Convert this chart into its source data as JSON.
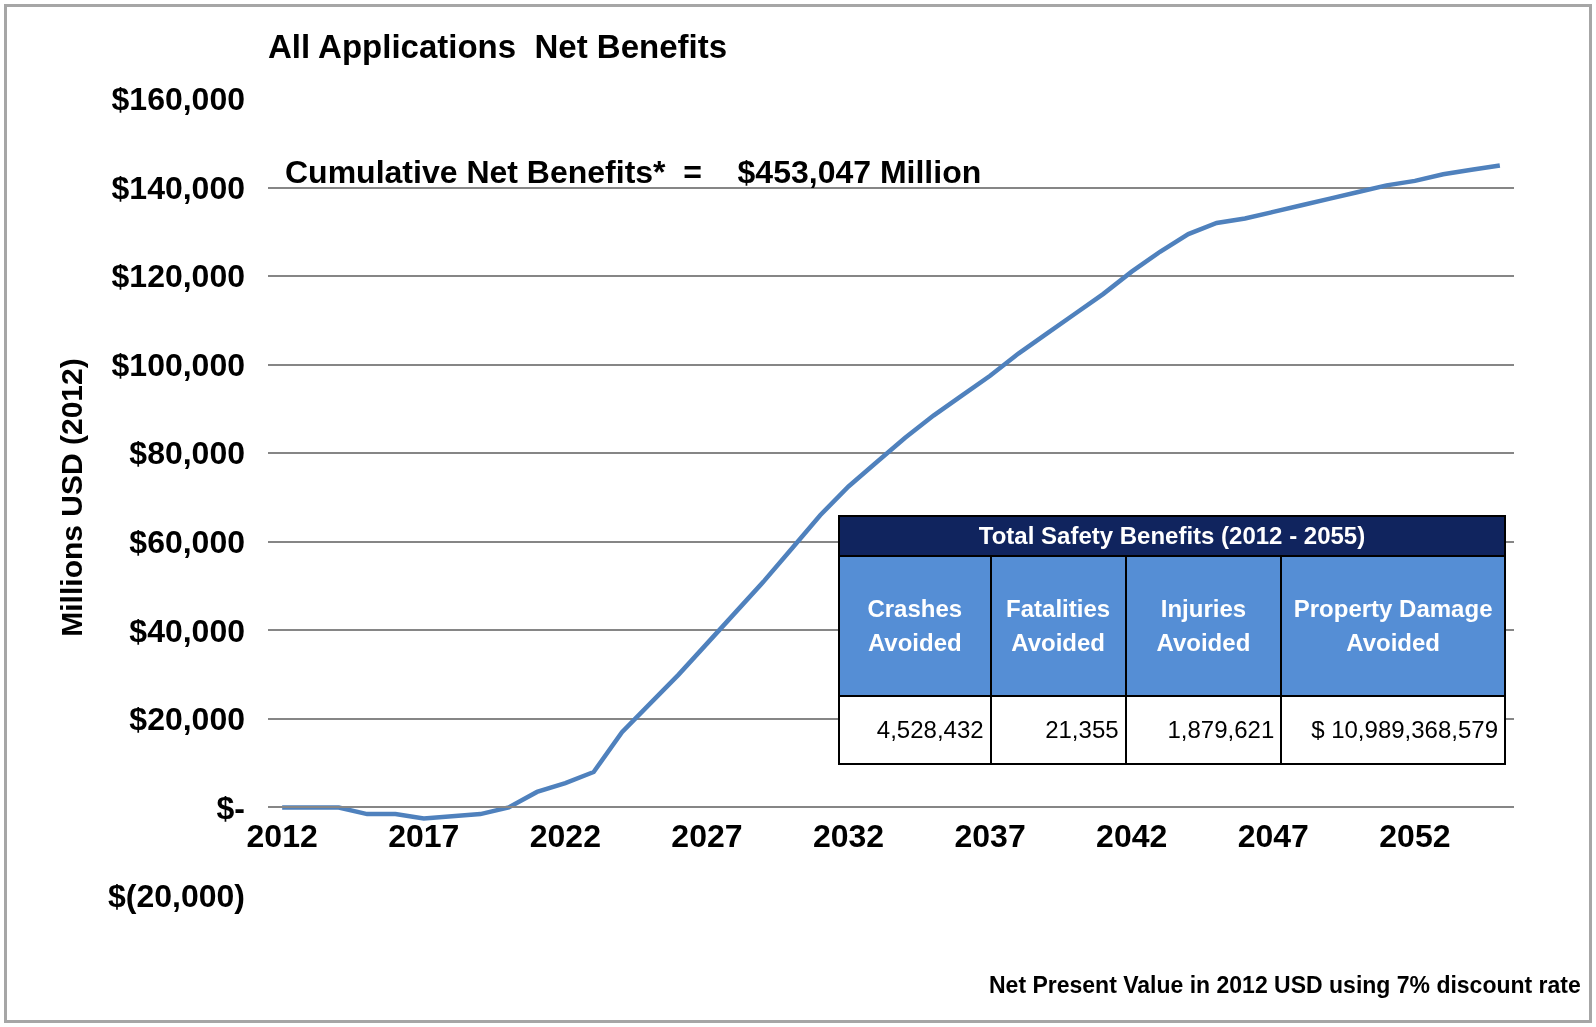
{
  "chart_data": {
    "type": "line",
    "title": "All Applications  Net Benefits",
    "ylabel": "Millions USD (2012)",
    "x": [
      2012,
      2014,
      2015,
      2016,
      2017,
      2019,
      2020,
      2021,
      2022,
      2023,
      2024,
      2025,
      2026,
      2027,
      2028,
      2029,
      2030,
      2031,
      2032,
      2033,
      2034,
      2035,
      2036,
      2037,
      2038,
      2039,
      2040,
      2041,
      2042,
      2043,
      2044,
      2045,
      2046,
      2047,
      2048,
      2049,
      2050,
      2051,
      2052,
      2053,
      2054,
      2055
    ],
    "series": [
      {
        "color": "#4f81bd",
        "values": [
          0,
          0,
          -1500,
          -1500,
          -2500,
          -1500,
          0,
          3500,
          5500,
          8000,
          17000,
          23500,
          30000,
          37000,
          44000,
          51000,
          58500,
          66000,
          72500,
          78000,
          83500,
          88500,
          93000,
          97500,
          102500,
          107000,
          111500,
          116000,
          121000,
          125500,
          129500,
          132000,
          133000,
          134500,
          136000,
          137500,
          139000,
          140500,
          141500,
          143000,
          144000,
          145000
        ]
      }
    ],
    "xlim": [
      2011.5,
      2055.5
    ],
    "xticks": [
      2012,
      2017,
      2022,
      2027,
      2032,
      2037,
      2042,
      2047,
      2052
    ],
    "ylim": [
      -20000,
      160000
    ],
    "yticks": [
      {
        "value": -20000,
        "label": "$(20,000)"
      },
      {
        "value": 0,
        "label": "$-"
      },
      {
        "value": 20000,
        "label": "$20,000"
      },
      {
        "value": 40000,
        "label": "$40,000"
      },
      {
        "value": 60000,
        "label": "$60,000"
      },
      {
        "value": 80000,
        "label": "$80,000"
      },
      {
        "value": 100000,
        "label": "$100,000"
      },
      {
        "value": 120000,
        "label": "$120,000"
      },
      {
        "value": 140000,
        "label": "$140,000"
      },
      {
        "value": 160000,
        "label": "$160,000"
      }
    ],
    "grid": "y",
    "marker": "none",
    "line_style": "solid",
    "annotations": [
      "Cumulative Net Benefits*  =    $453,047 Million",
      "Net Present Value in 2012 USD using 7% discount rate",
      "Total Safety Benefits (2012 - 2055)",
      "Crashes Avoided",
      "Fatalities Avoided",
      "Injuries Avoided",
      "Property Damage Avoided",
      "4,528,432",
      "21,355",
      "1,879,621",
      "$  10,989,368,579"
    ]
  }
}
